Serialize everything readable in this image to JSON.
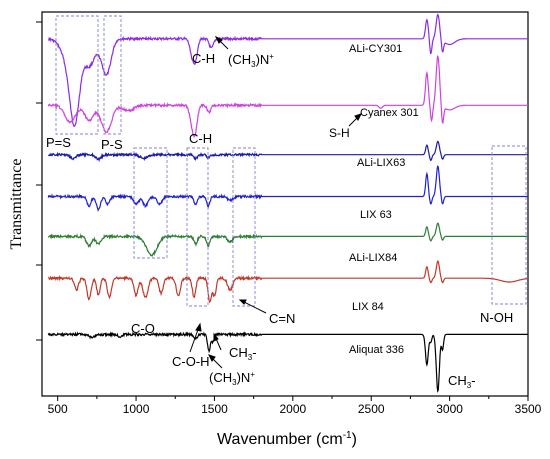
{
  "chart_data": {
    "type": "line",
    "xlabel": "Wavenumber (cm",
    "xlabel_sup": "-1",
    "xlabel_tail": ")",
    "ylabel": "Transmittance",
    "xlim": [
      400,
      3500
    ],
    "xticks": [
      500,
      1000,
      1500,
      2000,
      2500,
      3000,
      3500
    ],
    "grid": false,
    "series": [
      {
        "name": "ALi-CY301",
        "color": "#8a2be2",
        "baseline": 0.06,
        "features": [
          [
            570,
            0.04,
            0.055
          ],
          [
            610,
            0.028,
            0.19
          ],
          [
            700,
            0.03,
            0.07
          ],
          [
            780,
            0.03,
            0.025
          ],
          [
            815,
            0.025,
            0.08
          ],
          [
            1360,
            0.014,
            0.045
          ],
          [
            1380,
            0.012,
            0.04
          ],
          [
            1480,
            0.012,
            0.025
          ],
          [
            2855,
            0.008,
            -0.05
          ],
          [
            2880,
            0.006,
            0.04
          ],
          [
            2925,
            0.01,
            -0.065
          ],
          [
            2955,
            0.006,
            0.03
          ],
          [
            3000,
            0.03,
            0.015
          ]
        ]
      },
      {
        "name": "Cyanex 301",
        "color": "#cc44dd",
        "baseline": 0.235,
        "features": [
          [
            580,
            0.03,
            0.045
          ],
          [
            700,
            0.025,
            0.04
          ],
          [
            810,
            0.03,
            0.07
          ],
          [
            950,
            0.03,
            0.015
          ],
          [
            1360,
            0.014,
            0.055
          ],
          [
            1380,
            0.012,
            0.05
          ],
          [
            1465,
            0.01,
            0.02
          ],
          [
            2560,
            0.01,
            0.008
          ],
          [
            2855,
            0.008,
            -0.085
          ],
          [
            2885,
            0.006,
            0.04
          ],
          [
            2925,
            0.01,
            -0.13
          ],
          [
            2955,
            0.006,
            0.045
          ],
          [
            3000,
            0.03,
            0.012
          ]
        ]
      },
      {
        "name": "ALi-LIX63",
        "color": "#1a1aa8",
        "baseline": 0.365,
        "features": [
          [
            600,
            0.015,
            0.01
          ],
          [
            760,
            0.015,
            0.012
          ],
          [
            1050,
            0.02,
            0.01
          ],
          [
            1380,
            0.01,
            0.01
          ],
          [
            1460,
            0.01,
            0.008
          ],
          [
            2855,
            0.007,
            -0.025
          ],
          [
            2880,
            0.006,
            0.015
          ],
          [
            2925,
            0.009,
            -0.035
          ],
          [
            2955,
            0.006,
            0.012
          ]
        ]
      },
      {
        "name": "LIX 63",
        "color": "#2020cc",
        "baseline": 0.475,
        "features": [
          [
            700,
            0.012,
            0.025
          ],
          [
            760,
            0.012,
            0.035
          ],
          [
            820,
            0.012,
            0.02
          ],
          [
            1000,
            0.015,
            0.02
          ],
          [
            1060,
            0.015,
            0.025
          ],
          [
            1150,
            0.015,
            0.02
          ],
          [
            1380,
            0.01,
            0.02
          ],
          [
            1460,
            0.01,
            0.025
          ],
          [
            1600,
            0.015,
            0.01
          ],
          [
            2855,
            0.007,
            -0.06
          ],
          [
            2880,
            0.006,
            0.02
          ],
          [
            2925,
            0.009,
            -0.08
          ],
          [
            2955,
            0.006,
            0.02
          ]
        ]
      },
      {
        "name": "ALi-LIX84",
        "color": "#2e7d32",
        "baseline": 0.58,
        "features": [
          [
            700,
            0.015,
            0.025
          ],
          [
            760,
            0.015,
            0.02
          ],
          [
            1100,
            0.03,
            0.05
          ],
          [
            1380,
            0.01,
            0.02
          ],
          [
            1460,
            0.01,
            0.025
          ],
          [
            1600,
            0.015,
            0.015
          ],
          [
            2855,
            0.007,
            -0.025
          ],
          [
            2880,
            0.006,
            0.012
          ],
          [
            2925,
            0.009,
            -0.035
          ],
          [
            2955,
            0.006,
            0.01
          ]
        ]
      },
      {
        "name": "LIX 84",
        "color": "#c0392b",
        "baseline": 0.69,
        "features": [
          [
            620,
            0.012,
            0.03
          ],
          [
            700,
            0.012,
            0.055
          ],
          [
            760,
            0.01,
            0.045
          ],
          [
            830,
            0.012,
            0.05
          ],
          [
            1000,
            0.012,
            0.045
          ],
          [
            1060,
            0.015,
            0.05
          ],
          [
            1160,
            0.012,
            0.04
          ],
          [
            1270,
            0.012,
            0.045
          ],
          [
            1370,
            0.01,
            0.05
          ],
          [
            1470,
            0.01,
            0.06
          ],
          [
            1500,
            0.01,
            0.045
          ],
          [
            1600,
            0.015,
            0.03
          ],
          [
            2855,
            0.007,
            -0.03
          ],
          [
            2880,
            0.006,
            0.012
          ],
          [
            2925,
            0.009,
            -0.045
          ],
          [
            2955,
            0.006,
            0.012
          ],
          [
            3380,
            0.05,
            0.01
          ]
        ]
      },
      {
        "name": "Aliquat 336",
        "color": "#000000",
        "baseline": 0.838,
        "features": [
          [
            720,
            0.012,
            0.01
          ],
          [
            900,
            0.012,
            0.006
          ],
          [
            1380,
            0.01,
            0.012
          ],
          [
            1465,
            0.008,
            0.045
          ],
          [
            1490,
            0.006,
            0.02
          ],
          [
            2855,
            0.008,
            0.08
          ],
          [
            2880,
            0.006,
            0.02
          ],
          [
            2925,
            0.009,
            0.15
          ],
          [
            2955,
            0.006,
            0.04
          ]
        ]
      }
    ],
    "series_labels": [
      "ALi-CY301",
      "Cyanex 301",
      "ALi-LIX63",
      "LIX 63",
      "ALi-LIX84",
      "LIX 84",
      "Aliquat 336"
    ],
    "annotations": {
      "p_s_eq": "P=S",
      "p_s": "P-S",
      "c_h_top": "C-H",
      "ch3n_top": "(CH",
      "ch3n_top_sub": "3",
      "ch3n_top_tail": ")N",
      "ch3n_top_sup": "+",
      "c_h_mid": "C-H",
      "s_h": "S-H",
      "c_o": "C-O",
      "c_o_h": "C-O-H",
      "ch3_mid": "CH",
      "ch3_mid_sub": "3",
      "ch3_mid_sup": "-",
      "c_n": "C=N",
      "ch3n_bot": "(CH",
      "ch3n_bot_sub": "3",
      "ch3n_bot_tail": ")N",
      "ch3n_bot_sup": "+",
      "ch3_bot": "CH",
      "ch3_bot_sub": "3",
      "ch3_bot_sup": "-",
      "n_oh": "N-OH"
    }
  }
}
